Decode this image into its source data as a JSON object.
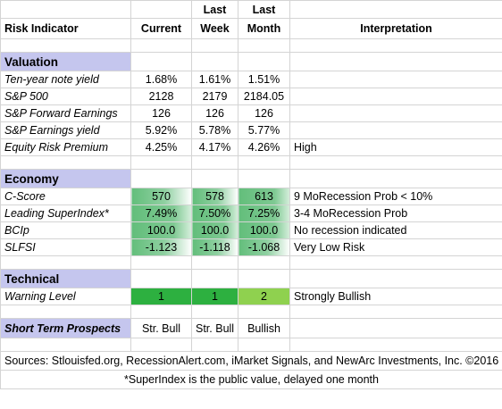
{
  "header": {
    "col_indicator": "Risk Indicator",
    "col_current": "Current",
    "col_last_week_top": "Last",
    "col_last_week_bottom": "Week",
    "col_last_month_top": "Last",
    "col_last_month_bottom": "Month",
    "col_interpretation": "Interpretation"
  },
  "valuation": {
    "title": "Valuation",
    "rows": [
      {
        "name": "Ten-year note yield",
        "current": "1.68%",
        "last_week": "1.61%",
        "last_month": "1.51%",
        "interp": ""
      },
      {
        "name": "S&P 500",
        "current": "2128",
        "last_week": "2179",
        "last_month": "2184.05",
        "interp": ""
      },
      {
        "name": "S&P Forward Earnings",
        "current": "126",
        "last_week": "126",
        "last_month": "126",
        "interp": ""
      },
      {
        "name": "S&P Earnings yield",
        "current": "5.92%",
        "last_week": "5.78%",
        "last_month": "5.77%",
        "interp": ""
      },
      {
        "name": "Equity Risk Premium",
        "current": "4.25%",
        "last_week": "4.17%",
        "last_month": "4.26%",
        "interp": "High"
      }
    ]
  },
  "economy": {
    "title": "Economy",
    "rows": [
      {
        "name": "C-Score",
        "current": "570",
        "last_week": "578",
        "last_month": "613",
        "interp": "9 MoRecession Prob < 10%"
      },
      {
        "name": "Leading SuperIndex*",
        "current": "7.49%",
        "last_week": "7.50%",
        "last_month": "7.25%",
        "interp": "3-4 MoRecession Prob"
      },
      {
        "name": "BCIp",
        "current": "100.0",
        "last_week": "100.0",
        "last_month": "100.0",
        "interp": "No recession indicated"
      },
      {
        "name": "SLFSI",
        "current": "-1.123",
        "last_week": "-1.118",
        "last_month": "-1.068",
        "interp": "Very Low Risk"
      }
    ]
  },
  "technical": {
    "title": "Technical",
    "rows": [
      {
        "name": "Warning Level",
        "current": "1",
        "last_week": "1",
        "last_month": "2",
        "interp": "Strongly Bullish"
      }
    ]
  },
  "prospects": {
    "name": "Short Term Prospects",
    "current": "Str. Bull",
    "last_week": "Str. Bull",
    "last_month": "Bullish"
  },
  "footer": {
    "sources": "Sources: Stlouisfed.org, RecessionAlert.com, iMarket Signals, and NewArc Investments, Inc. ©2016",
    "note": "*SuperIndex is the public value, delayed one month"
  },
  "colors": {
    "section_band": "#c5c6ee",
    "header_rule": "#7f9fcf",
    "green_scale_high": "#63be7b",
    "warning_dark_green": "#2db040",
    "warning_light_green": "#8fd14f"
  }
}
